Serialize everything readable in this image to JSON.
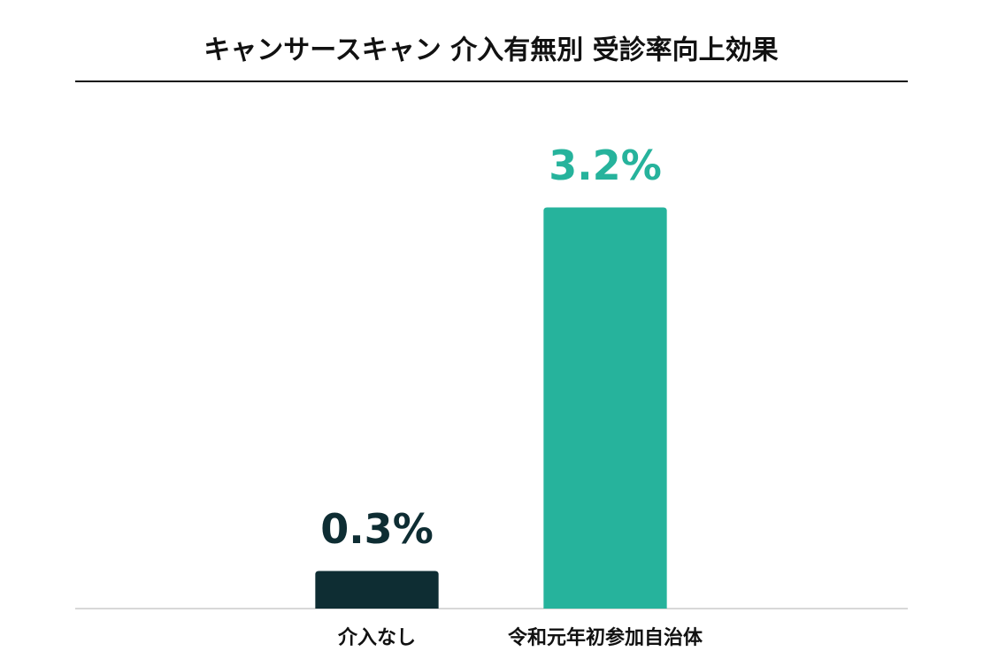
{
  "chart_data": {
    "type": "bar",
    "title": "キャンサースキャン 介入有無別 受診率向上効果",
    "categories": [
      "介入なし",
      "令和元年初参加自治体"
    ],
    "values": [
      0.3,
      3.2
    ],
    "value_labels": [
      "0.3%",
      "3.2%"
    ],
    "colors": [
      "#0e2d33",
      "#26b39c"
    ],
    "ylim": [
      0,
      3.5
    ]
  }
}
